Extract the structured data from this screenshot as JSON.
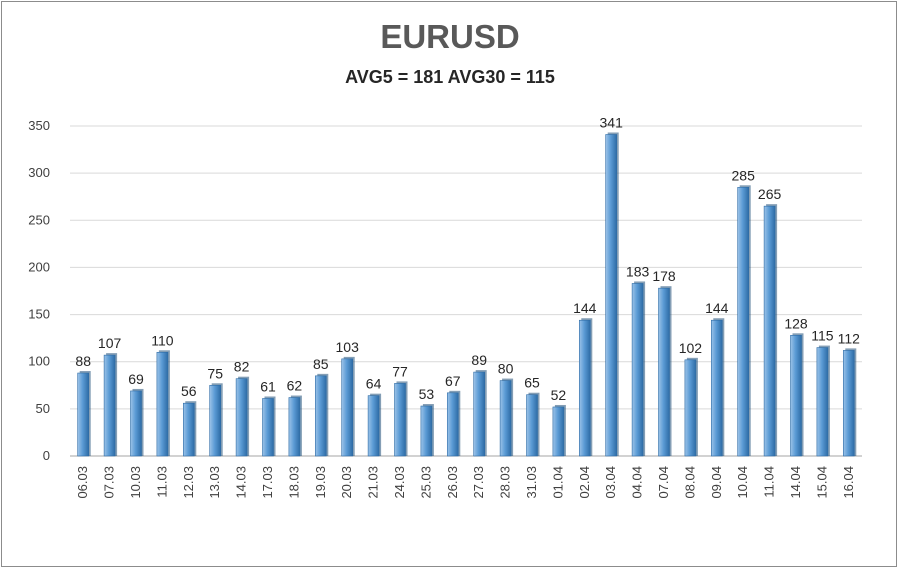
{
  "chart_data": {
    "type": "bar",
    "title": "EURUSD",
    "subtitle": "AVG5 = 181 AVG30 = 115",
    "categories": [
      "06.03",
      "07.03",
      "10.03",
      "11.03",
      "12.03",
      "13.03",
      "14.03",
      "17.03",
      "18.03",
      "19.03",
      "20.03",
      "21.03",
      "24.03",
      "25.03",
      "26.03",
      "27.03",
      "28.03",
      "31.03",
      "01.04",
      "02.04",
      "03.04",
      "04.04",
      "07.04",
      "08.04",
      "09.04",
      "10.04",
      "11.04",
      "14.04",
      "15.04",
      "16.04"
    ],
    "values": [
      88,
      107,
      69,
      110,
      56,
      75,
      82,
      61,
      62,
      85,
      103,
      64,
      77,
      53,
      67,
      89,
      80,
      65,
      52,
      144,
      341,
      183,
      178,
      102,
      144,
      285,
      265,
      128,
      115,
      112
    ],
    "yticks": [
      0,
      50,
      100,
      150,
      200,
      250,
      300,
      350
    ],
    "ylim": [
      0,
      350
    ],
    "grid": true,
    "bar_color": "#5b9bd5",
    "bar_color_dark": "#2e6ca6",
    "bar_color_light": "#9cc3e8"
  }
}
